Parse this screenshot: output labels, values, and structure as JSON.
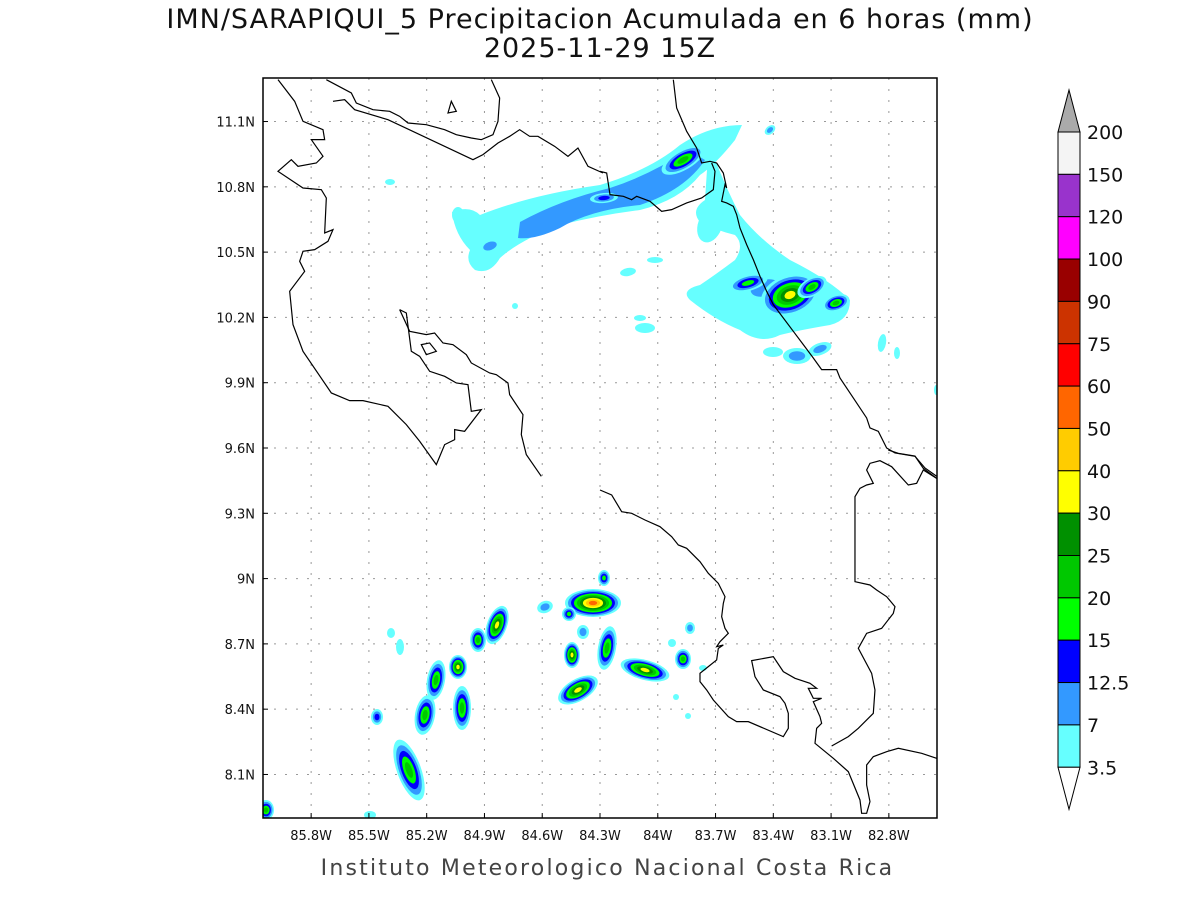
{
  "title": {
    "line1": "IMN/SARAPIQUI_5 Precipitacion Acumulada en 6 horas (mm)",
    "line2": "2025-11-29 15Z"
  },
  "footer": "Instituto Meteorologico Nacional Costa Rica",
  "map": {
    "lon_range": [
      -86.05,
      -82.55
    ],
    "lat_range": [
      7.9,
      11.3
    ],
    "lon_ticks": [
      {
        "value": -85.8,
        "label": "85.8W"
      },
      {
        "value": -85.5,
        "label": "85.5W"
      },
      {
        "value": -85.2,
        "label": "85.2W"
      },
      {
        "value": -84.9,
        "label": "84.9W"
      },
      {
        "value": -84.6,
        "label": "84.6W"
      },
      {
        "value": -84.3,
        "label": "84.3W"
      },
      {
        "value": -84.0,
        "label": "84W"
      },
      {
        "value": -83.7,
        "label": "83.7W"
      },
      {
        "value": -83.4,
        "label": "83.4W"
      },
      {
        "value": -83.1,
        "label": "83.1W"
      },
      {
        "value": -82.8,
        "label": "82.8W"
      }
    ],
    "lat_ticks": [
      {
        "value": 11.1,
        "label": "11.1N"
      },
      {
        "value": 10.8,
        "label": "10.8N"
      },
      {
        "value": 10.5,
        "label": "10.5N"
      },
      {
        "value": 10.2,
        "label": "10.2N"
      },
      {
        "value": 9.9,
        "label": "9.9N"
      },
      {
        "value": 9.6,
        "label": "9.6N"
      },
      {
        "value": 9.3,
        "label": "9.3N"
      },
      {
        "value": 9.0,
        "label": "9N"
      },
      {
        "value": 8.7,
        "label": "8.7N"
      },
      {
        "value": 8.4,
        "label": "8.4N"
      },
      {
        "value": 8.1,
        "label": "8.1N"
      }
    ]
  },
  "colorbar": {
    "unit": "mm",
    "labels": [
      "200",
      "150",
      "120",
      "100",
      "90",
      "75",
      "60",
      "50",
      "40",
      "30",
      "25",
      "20",
      "15",
      "12.5",
      "7",
      "3.5"
    ],
    "over_color": "#aaaaaa",
    "under_color": "#ffffff",
    "bin_colors": [
      "#f4f4f4",
      "#9933cc",
      "#ff00ff",
      "#990000",
      "#cc3300",
      "#ff0000",
      "#ff6600",
      "#ffcc00",
      "#ffff00",
      "#009000",
      "#00c800",
      "#00ff00",
      "#0000ff",
      "#3399ff",
      "#66ffff"
    ]
  }
}
